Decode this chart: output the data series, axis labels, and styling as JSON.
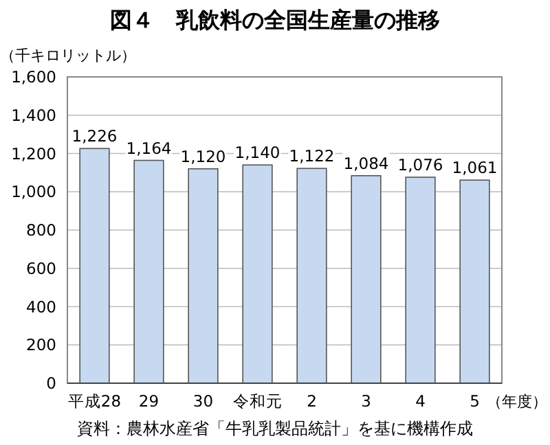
{
  "chart_data": {
    "type": "bar",
    "title": "図４　乳飲料の全国生産量の推移",
    "ylabel": "（千キロリットル）",
    "xlabel": "（年度）",
    "categories": [
      "平成28",
      "29",
      "30",
      "令和元",
      "2",
      "3",
      "4",
      "5"
    ],
    "values": [
      1226,
      1164,
      1120,
      1140,
      1122,
      1084,
      1076,
      1061
    ],
    "color": "#c6d9f0",
    "ylim": [
      0,
      1600
    ],
    "yticks": [
      {
        "value": 0,
        "label": "0"
      },
      {
        "value": 200,
        "label": "200"
      },
      {
        "value": 400,
        "label": "400"
      },
      {
        "value": 600,
        "label": "600"
      },
      {
        "value": 800,
        "label": "800"
      },
      {
        "value": 1000,
        "label": "1,000"
      },
      {
        "value": 1200,
        "label": "1,200"
      },
      {
        "value": 1400,
        "label": "1,400"
      },
      {
        "value": 1600,
        "label": "1,600"
      }
    ],
    "grid": "y",
    "value_labels": [
      "1,226",
      "1,164",
      "1,120",
      "1,140",
      "1,122",
      "1,084",
      "1,076",
      "1,061"
    ],
    "annotations": [
      "資料：農林水産省「牛乳乳製品統計」を基に機構作成"
    ]
  }
}
